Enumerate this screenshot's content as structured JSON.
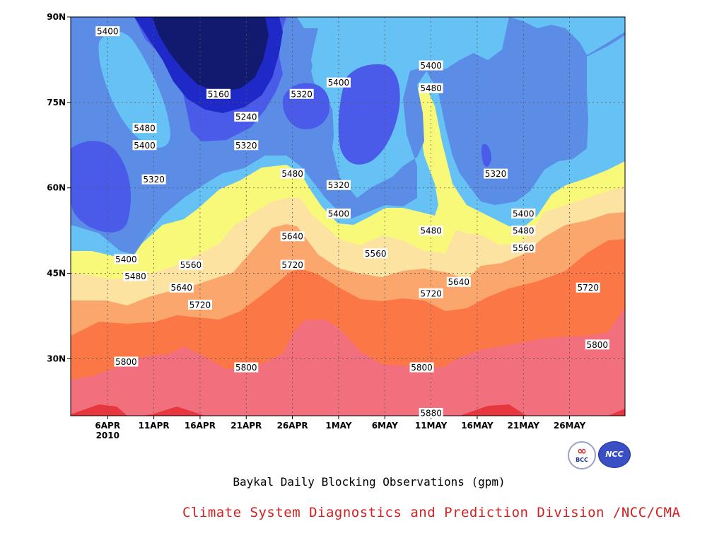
{
  "chart_data": {
    "type": "heatmap",
    "subtype": "filled-contour",
    "title": "Baykal Daily Blocking Observations (gpm)",
    "x": {
      "ticks": [
        "6APR",
        "11APR",
        "16APR",
        "21APR",
        "26APR",
        "1MAY",
        "6MAY",
        "11MAY",
        "16MAY",
        "21MAY",
        "26MAY"
      ],
      "year_label": "2010",
      "range": [
        "2010-04-02",
        "2010-06-01"
      ]
    },
    "y": {
      "ticks": [
        "30N",
        "45N",
        "60N",
        "75N",
        "90N"
      ],
      "tick_values": [
        30,
        45,
        60,
        75,
        90
      ],
      "range": [
        20,
        90
      ]
    },
    "grid": true,
    "contour_levels": [
      5160,
      5240,
      5320,
      5400,
      5480,
      5560,
      5640,
      5720,
      5800,
      5880
    ],
    "fill_colors": [
      "#111a6e",
      "#1f29c7",
      "#4a5bea",
      "#5b8ce6",
      "#66c2f5",
      "#f8f978",
      "#fde3a2",
      "#fba66c",
      "#fb7745",
      "#f26f7e",
      "#e8363f"
    ],
    "contour_labels": [
      {
        "text": "5400",
        "date": "2010-04-06",
        "lat": 87.5
      },
      {
        "text": "5480",
        "date": "2010-04-10",
        "lat": 70.5
      },
      {
        "text": "5400",
        "date": "2010-04-10",
        "lat": 67.5
      },
      {
        "text": "5320",
        "date": "2010-04-11",
        "lat": 61.5
      },
      {
        "text": "5160",
        "date": "2010-04-18",
        "lat": 76.5
      },
      {
        "text": "5240",
        "date": "2010-04-21",
        "lat": 72.5
      },
      {
        "text": "5320",
        "date": "2010-04-21",
        "lat": 67.5
      },
      {
        "text": "5320",
        "date": "2010-04-27",
        "lat": 76.5
      },
      {
        "text": "5400",
        "date": "2010-05-01",
        "lat": 78.5
      },
      {
        "text": "5480",
        "date": "2010-04-26",
        "lat": 62.5
      },
      {
        "text": "5320",
        "date": "2010-05-01",
        "lat": 60.5
      },
      {
        "text": "5400",
        "date": "2010-05-01",
        "lat": 55.5
      },
      {
        "text": "5640",
        "date": "2010-04-26",
        "lat": 51.5
      },
      {
        "text": "5560",
        "date": "2010-05-05",
        "lat": 48.5
      },
      {
        "text": "5720",
        "date": "2010-04-26",
        "lat": 46.5
      },
      {
        "text": "5400",
        "date": "2010-05-11",
        "lat": 81.5
      },
      {
        "text": "5480",
        "date": "2010-05-11",
        "lat": 77.5
      },
      {
        "text": "5480",
        "date": "2010-05-11",
        "lat": 52.5
      },
      {
        "text": "5720",
        "date": "2010-05-11",
        "lat": 41.5
      },
      {
        "text": "5640",
        "date": "2010-05-14",
        "lat": 43.5
      },
      {
        "text": "5320",
        "date": "2010-05-18",
        "lat": 62.5
      },
      {
        "text": "5400",
        "date": "2010-05-21",
        "lat": 55.5
      },
      {
        "text": "5480",
        "date": "2010-05-21",
        "lat": 52.5
      },
      {
        "text": "5560",
        "date": "2010-05-21",
        "lat": 49.5
      },
      {
        "text": "5720",
        "date": "2010-05-28",
        "lat": 42.5
      },
      {
        "text": "5800",
        "date": "2010-05-29",
        "lat": 32.5
      },
      {
        "text": "5800",
        "date": "2010-05-10",
        "lat": 28.5
      },
      {
        "text": "5800",
        "date": "2010-04-21",
        "lat": 28.5
      },
      {
        "text": "5800",
        "date": "2010-04-08",
        "lat": 29.5
      },
      {
        "text": "5720",
        "date": "2010-04-16",
        "lat": 39.5
      },
      {
        "text": "5640",
        "date": "2010-04-14",
        "lat": 42.5
      },
      {
        "text": "5560",
        "date": "2010-04-15",
        "lat": 46.5
      },
      {
        "text": "5480",
        "date": "2010-04-09",
        "lat": 44.5
      },
      {
        "text": "5400",
        "date": "2010-04-08",
        "lat": 47.5
      },
      {
        "text": "5880",
        "date": "2010-05-11",
        "lat": 20.5
      }
    ]
  },
  "credit": "Climate System Diagnostics and Prediction Division /NCC/CMA",
  "logos": {
    "bcc": "BCC",
    "ncc": "NCC"
  }
}
